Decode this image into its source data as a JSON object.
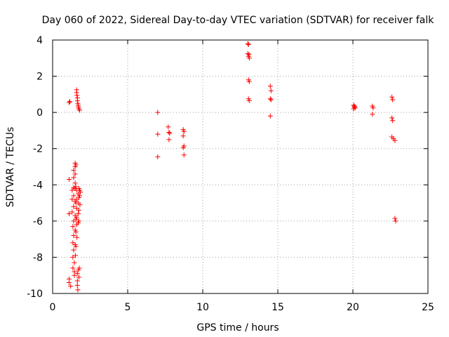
{
  "chart_data": {
    "type": "scatter",
    "title": "Day 060 of 2022, Sidereal Day-to-day VTEC variation (SDTVAR) for receiver falk",
    "xlabel": "GPS time / hours",
    "ylabel": "SDTVAR / TECUs",
    "xlim": [
      0,
      25
    ],
    "ylim": [
      -10,
      4
    ],
    "xticks": [
      0,
      5,
      10,
      15,
      20,
      25
    ],
    "yticks": [
      -10,
      -8,
      -6,
      -4,
      -2,
      0,
      2,
      4
    ],
    "grid": true,
    "marker": "+",
    "color": "#ff0000",
    "series": [
      {
        "name": "SDTVAR",
        "points": [
          [
            1.1,
            0.55
          ],
          [
            1.15,
            0.6
          ],
          [
            1.6,
            1.25
          ],
          [
            1.6,
            1.1
          ],
          [
            1.62,
            0.95
          ],
          [
            1.65,
            0.8
          ],
          [
            1.65,
            0.65
          ],
          [
            1.68,
            0.5
          ],
          [
            1.7,
            0.4
          ],
          [
            1.72,
            0.3
          ],
          [
            1.75,
            0.2
          ],
          [
            1.8,
            0.12
          ],
          [
            1.1,
            -3.7
          ],
          [
            1.1,
            -5.6
          ],
          [
            1.1,
            -9.2
          ],
          [
            1.1,
            -9.4
          ],
          [
            1.2,
            -9.6
          ],
          [
            1.3,
            -4.3
          ],
          [
            1.3,
            -4.8
          ],
          [
            1.3,
            -5.5
          ],
          [
            1.35,
            -6.3
          ],
          [
            1.35,
            -7.2
          ],
          [
            1.35,
            -8.0
          ],
          [
            1.35,
            -8.6
          ],
          [
            1.4,
            -3.2
          ],
          [
            1.4,
            -3.6
          ],
          [
            1.4,
            -4.15
          ],
          [
            1.4,
            -4.6
          ],
          [
            1.4,
            -5.2
          ],
          [
            1.4,
            -6.0
          ],
          [
            1.4,
            -6.8
          ],
          [
            1.4,
            -7.6
          ],
          [
            1.45,
            -8.3
          ],
          [
            1.45,
            -8.8
          ],
          [
            1.45,
            -9.0
          ],
          [
            1.5,
            -2.8
          ],
          [
            1.5,
            -3.0
          ],
          [
            1.5,
            -3.4
          ],
          [
            1.5,
            -3.9
          ],
          [
            1.5,
            -4.2
          ],
          [
            1.5,
            -4.9
          ],
          [
            1.5,
            -5.7
          ],
          [
            1.5,
            -6.5
          ],
          [
            1.5,
            -7.3
          ],
          [
            1.52,
            -7.9
          ],
          [
            1.55,
            -2.9
          ],
          [
            1.55,
            -4.1
          ],
          [
            1.55,
            -5.0
          ],
          [
            1.55,
            -5.9
          ],
          [
            1.55,
            -6.6
          ],
          [
            1.55,
            -7.4
          ],
          [
            1.6,
            -4.3
          ],
          [
            1.6,
            -4.8
          ],
          [
            1.6,
            -5.3
          ],
          [
            1.6,
            -5.8
          ],
          [
            1.6,
            -6.2
          ],
          [
            1.62,
            -6.9
          ],
          [
            1.65,
            -8.9
          ],
          [
            1.65,
            -9.3
          ],
          [
            1.65,
            -9.55
          ],
          [
            1.68,
            -9.8
          ],
          [
            1.7,
            -4.5
          ],
          [
            1.7,
            -5.0
          ],
          [
            1.7,
            -5.6
          ],
          [
            1.7,
            -6.1
          ],
          [
            1.72,
            -8.7
          ],
          [
            1.75,
            -9.1
          ],
          [
            1.75,
            -4.2
          ],
          [
            1.75,
            -4.7
          ],
          [
            1.75,
            -5.4
          ],
          [
            1.75,
            -6.0
          ],
          [
            1.78,
            -8.6
          ],
          [
            1.8,
            -4.3
          ],
          [
            1.8,
            -4.6
          ],
          [
            1.82,
            -5.1
          ],
          [
            1.85,
            -4.4
          ],
          [
            7.0,
            0.0
          ],
          [
            7.0,
            -1.2
          ],
          [
            7.0,
            -2.45
          ],
          [
            7.7,
            -0.8
          ],
          [
            7.75,
            -1.1
          ],
          [
            7.8,
            -1.15
          ],
          [
            7.75,
            -1.5
          ],
          [
            8.7,
            -0.95
          ],
          [
            8.75,
            -1.05
          ],
          [
            8.7,
            -1.3
          ],
          [
            8.75,
            -1.85
          ],
          [
            8.7,
            -1.95
          ],
          [
            8.75,
            -2.35
          ],
          [
            13.0,
            3.8
          ],
          [
            13.05,
            3.75
          ],
          [
            13.0,
            3.25
          ],
          [
            13.05,
            3.1
          ],
          [
            13.1,
            3.0
          ],
          [
            13.08,
            3.2
          ],
          [
            13.05,
            1.8
          ],
          [
            13.1,
            1.7
          ],
          [
            13.05,
            0.75
          ],
          [
            13.1,
            0.65
          ],
          [
            14.5,
            1.45
          ],
          [
            14.55,
            1.2
          ],
          [
            14.5,
            0.75
          ],
          [
            14.55,
            0.7
          ],
          [
            14.5,
            -0.2
          ],
          [
            20.05,
            0.4
          ],
          [
            20.1,
            0.3
          ],
          [
            20.05,
            0.2
          ],
          [
            20.15,
            0.25
          ],
          [
            20.1,
            0.35
          ],
          [
            21.3,
            0.35
          ],
          [
            21.35,
            0.25
          ],
          [
            21.3,
            -0.1
          ],
          [
            22.6,
            0.85
          ],
          [
            22.65,
            0.7
          ],
          [
            22.6,
            -0.3
          ],
          [
            22.65,
            -0.45
          ],
          [
            22.6,
            -1.35
          ],
          [
            22.7,
            -1.45
          ],
          [
            22.8,
            -1.55
          ],
          [
            22.8,
            -5.85
          ],
          [
            22.85,
            -6.0
          ]
        ]
      }
    ]
  }
}
